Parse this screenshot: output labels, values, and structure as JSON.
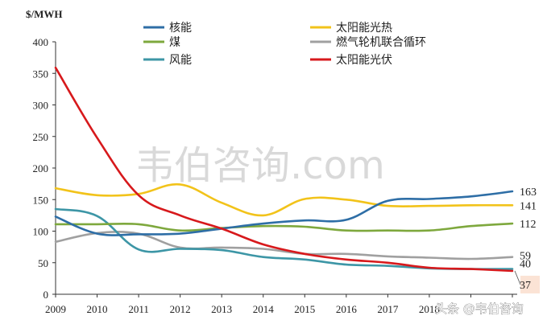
{
  "watermark": "韦伯咨询.com",
  "credit": "头条 @韦伯咨询",
  "chart_data": {
    "type": "line",
    "ylabel": "$/MWH",
    "ylim": [
      0,
      400
    ],
    "yticks": [
      0,
      50,
      100,
      150,
      200,
      250,
      300,
      350,
      400
    ],
    "x": [
      "2009",
      "2010",
      "2011",
      "2012",
      "2013",
      "2014",
      "2015",
      "2016",
      "2017",
      "2018",
      "2019",
      "2020"
    ],
    "xtick_labels": [
      "2009",
      "2010",
      "2011",
      "2012",
      "2013",
      "2014",
      "2015",
      "2016",
      "2017",
      "2018"
    ],
    "legend_position": "top",
    "grid": false,
    "series": [
      {
        "name": "核能",
        "color": "#2e6ea6",
        "end_label": "163",
        "values": [
          123,
          96,
          95,
          96,
          104,
          112,
          117,
          118,
          148,
          151,
          155,
          163
        ]
      },
      {
        "name": "太阳能光热",
        "color": "#f2c31a",
        "end_label": "141",
        "values": [
          168,
          157,
          159,
          174,
          145,
          125,
          151,
          150,
          140,
          140,
          141,
          141
        ]
      },
      {
        "name": "煤",
        "color": "#7ea83d",
        "end_label": "112",
        "values": [
          111,
          111,
          111,
          101,
          105,
          108,
          107,
          101,
          101,
          101,
          108,
          112
        ]
      },
      {
        "name": "燃气轮机联合循环",
        "color": "#a0a0a0",
        "end_label": "59",
        "values": [
          83,
          97,
          96,
          74,
          74,
          72,
          64,
          64,
          60,
          58,
          56,
          59
        ]
      },
      {
        "name": "风能",
        "color": "#3d96a6",
        "end_label": "40",
        "values": [
          135,
          124,
          71,
          72,
          70,
          59,
          55,
          47,
          45,
          41,
          40,
          40
        ]
      },
      {
        "name": "太阳能光伏",
        "color": "#d7191c",
        "end_label": "37",
        "values": [
          359,
          248,
          157,
          125,
          104,
          79,
          64,
          55,
          50,
          42,
          40,
          37
        ]
      }
    ]
  }
}
